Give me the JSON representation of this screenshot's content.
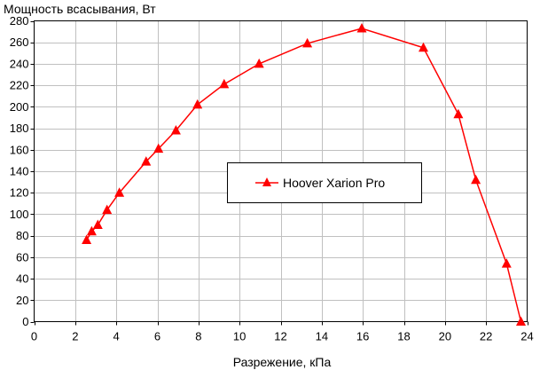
{
  "chart_data": {
    "type": "line",
    "title": "",
    "ylabel": "Мощность всасывания, Вт",
    "xlabel": "Разрежение, кПа",
    "xlim": [
      0,
      24
    ],
    "ylim": [
      0,
      280
    ],
    "xticks": [
      "0",
      "2",
      "4",
      "6",
      "8",
      "10",
      "12",
      "14",
      "16",
      "18",
      "20",
      "22",
      "24"
    ],
    "yticks": [
      "0",
      "20",
      "40",
      "60",
      "80",
      "100",
      "120",
      "140",
      "160",
      "180",
      "200",
      "220",
      "240",
      "260",
      "280"
    ],
    "grid": true,
    "legend_position": "center",
    "series": [
      {
        "name": "Hoover Xarion Pro",
        "color": "#ff0000",
        "marker": "triangle",
        "x": [
          2.55,
          2.8,
          3.1,
          3.55,
          4.15,
          5.45,
          6.05,
          6.9,
          7.95,
          9.25,
          10.95,
          13.3,
          15.95,
          18.95,
          20.65,
          21.5,
          23.0,
          23.7
        ],
        "y": [
          76,
          84,
          90,
          104,
          120,
          149,
          161,
          178,
          202,
          221,
          240,
          259,
          273,
          255,
          193,
          132,
          54,
          0
        ]
      }
    ]
  }
}
